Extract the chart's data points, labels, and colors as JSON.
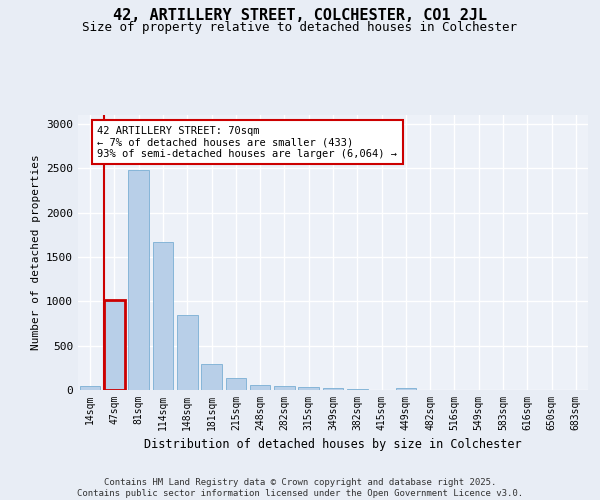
{
  "title_line1": "42, ARTILLERY STREET, COLCHESTER, CO1 2JL",
  "title_line2": "Size of property relative to detached houses in Colchester",
  "xlabel": "Distribution of detached houses by size in Colchester",
  "ylabel": "Number of detached properties",
  "categories": [
    "14sqm",
    "47sqm",
    "81sqm",
    "114sqm",
    "148sqm",
    "181sqm",
    "215sqm",
    "248sqm",
    "282sqm",
    "315sqm",
    "349sqm",
    "382sqm",
    "415sqm",
    "449sqm",
    "482sqm",
    "516sqm",
    "549sqm",
    "583sqm",
    "616sqm",
    "650sqm",
    "683sqm"
  ],
  "values": [
    40,
    1010,
    2480,
    1670,
    840,
    295,
    130,
    55,
    50,
    35,
    25,
    8,
    0,
    20,
    0,
    0,
    0,
    0,
    0,
    0,
    0
  ],
  "bar_color": "#b8cfe8",
  "bar_edge_color": "#7aafd4",
  "highlight_bar_index": 1,
  "highlight_bar_edge_color": "#cc0000",
  "annotation_box_text": "42 ARTILLERY STREET: 70sqm\n← 7% of detached houses are smaller (433)\n93% of semi-detached houses are larger (6,064) →",
  "ylim": [
    0,
    3100
  ],
  "background_color": "#e8edf5",
  "plot_background_color": "#edf1f8",
  "grid_color": "#ffffff",
  "footer_line1": "Contains HM Land Registry data © Crown copyright and database right 2025.",
  "footer_line2": "Contains public sector information licensed under the Open Government Licence v3.0.",
  "title_fontsize": 11,
  "subtitle_fontsize": 9,
  "annotation_fontsize": 7.5,
  "tick_fontsize": 7,
  "ylabel_fontsize": 8,
  "xlabel_fontsize": 8.5,
  "footer_fontsize": 6.5
}
